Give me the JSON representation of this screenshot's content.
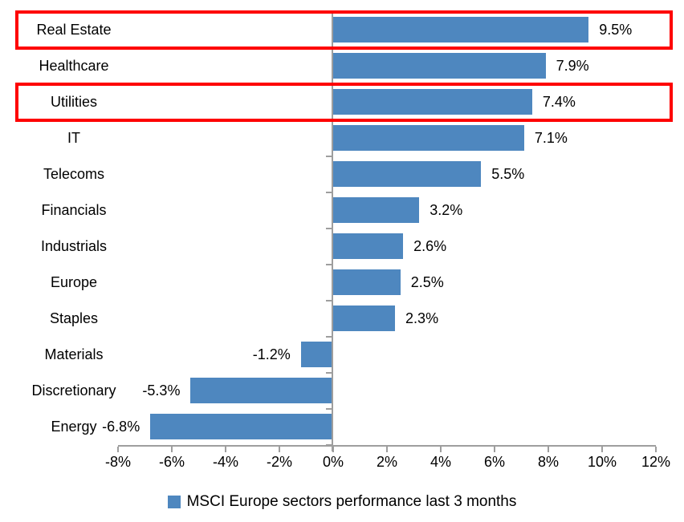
{
  "chart_data": {
    "type": "bar",
    "orientation": "horizontal",
    "categories": [
      "Real Estate",
      "Healthcare",
      "Utilities",
      "IT",
      "Telecoms",
      "Financials",
      "Industrials",
      "Europe",
      "Staples",
      "Materials",
      "Discretionary",
      "Energy"
    ],
    "values": [
      9.5,
      7.9,
      7.4,
      7.1,
      5.5,
      3.2,
      2.6,
      2.5,
      2.3,
      -1.2,
      -5.3,
      -6.8
    ],
    "value_labels": [
      "9.5%",
      "7.9%",
      "7.4%",
      "7.1%",
      "5.5%",
      "3.2%",
      "2.6%",
      "2.5%",
      "2.3%",
      "-1.2%",
      "-5.3%",
      "-6.8%"
    ],
    "x_ticks": [
      "-8%",
      "-6%",
      "-4%",
      "-2%",
      "0%",
      "2%",
      "4%",
      "6%",
      "8%",
      "10%",
      "12%"
    ],
    "xlim": [
      -8,
      12
    ],
    "x_tick_step": 2,
    "grid": false,
    "legend_position": "bottom-center",
    "legend_label": "MSCI Europe sectors performance last 3 months",
    "highlighted_categories": [
      "Real Estate",
      "Utilities"
    ],
    "colors": {
      "bar": "#4E87BF",
      "highlight_border": "#FE0000",
      "axis": "#9E9E9E",
      "text": "#000000"
    }
  }
}
